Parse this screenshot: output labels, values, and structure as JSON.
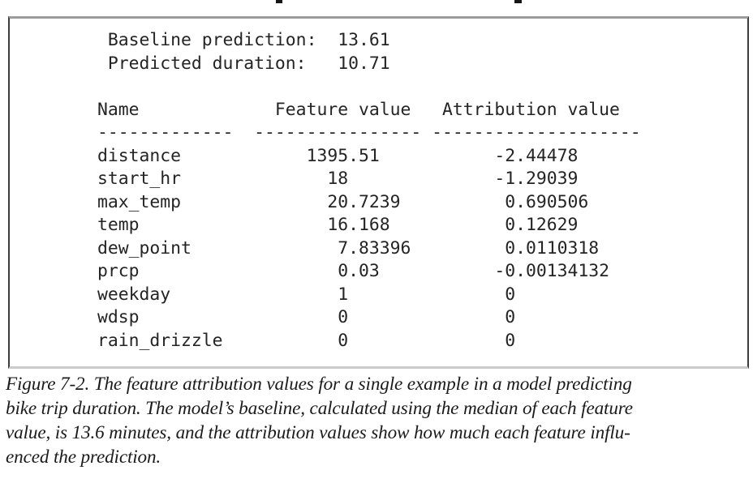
{
  "page": {
    "background": "#ffffff",
    "mono_text_color": "#242424",
    "caption_text_color": "#1b1b1b",
    "frame_border_colors": {
      "top": "#9c9c9c",
      "left": "#3c3c3c",
      "right": "#3c3c3c",
      "bottom": "#cbcbcb"
    }
  },
  "output": {
    "summary": [
      {
        "label": "Baseline prediction:",
        "value": "13.61"
      },
      {
        "label": "Predicted duration:",
        "value": "10.71"
      }
    ],
    "table": {
      "columns": [
        "Name",
        "Feature value",
        "Attribution value"
      ],
      "rulers": [
        "-------------",
        "----------------",
        "--------------------"
      ],
      "rows": [
        {
          "name": "distance",
          "feature_value": "1395.51",
          "attribution": "-2.44478"
        },
        {
          "name": "start_hr",
          "feature_value": "18",
          "attribution": "-1.29039"
        },
        {
          "name": "max_temp",
          "feature_value": "20.7239",
          "attribution": "0.690506"
        },
        {
          "name": "temp",
          "feature_value": "16.168",
          "attribution": "0.12629"
        },
        {
          "name": "dew_point",
          "feature_value": "7.83396",
          "attribution": "0.0110318"
        },
        {
          "name": "prcp",
          "feature_value": "0.03",
          "attribution": "-0.00134132"
        },
        {
          "name": "weekday",
          "feature_value": "1",
          "attribution": "0"
        },
        {
          "name": "wdsp",
          "feature_value": "0",
          "attribution": "0"
        },
        {
          "name": "rain_drizzle",
          "feature_value": "0",
          "attribution": "0"
        }
      ]
    }
  },
  "caption": {
    "lines": [
      "Figure 7-2. The feature attribution values for a single example in a model predicting",
      "bike trip duration. The model’s baseline, calculated using the median of each feature",
      "value, is 13.6 minutes, and the attribution values show how much each feature influ-",
      "enced the prediction."
    ]
  }
}
